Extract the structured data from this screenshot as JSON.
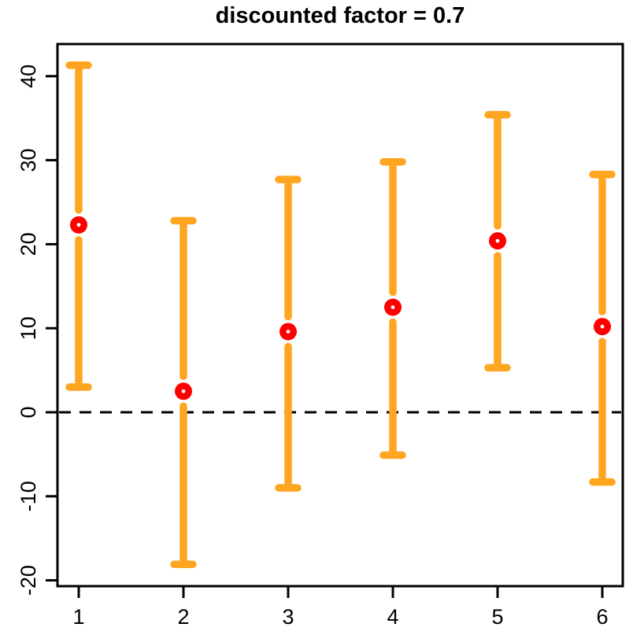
{
  "title": "discounted factor = 0.7",
  "chart_data": {
    "type": "scatter",
    "subtype": "point-estimates-with-error-bars",
    "title": "discounted factor = 0.7",
    "xlabel": "",
    "ylabel": "",
    "x": [
      1,
      2,
      3,
      4,
      5,
      6
    ],
    "series": [
      {
        "name": "point-estimate",
        "values": [
          22.3,
          2.5,
          9.6,
          12.5,
          20.4,
          10.2
        ],
        "color": "#fe0000",
        "marker": "filled-circle-white-center"
      },
      {
        "name": "interval-lower",
        "values": [
          3.0,
          -18.1,
          -9.0,
          -5.1,
          5.3,
          -8.3
        ],
        "color": "#ffa520"
      },
      {
        "name": "interval-upper",
        "values": [
          41.3,
          22.8,
          27.7,
          29.8,
          35.4,
          28.3
        ],
        "color": "#ffa520"
      }
    ],
    "error_bar_color": "#ffa520",
    "point_color": "#fe0000",
    "reference_line": {
      "y": 0,
      "style": "dashed",
      "color": "#000000"
    },
    "x_ticks": [
      "1",
      "2",
      "3",
      "4",
      "5",
      "6"
    ],
    "y_ticks": [
      "-20",
      "-10",
      "0",
      "10",
      "20",
      "30",
      "40"
    ],
    "y_tick_values": [
      -20,
      -10,
      0,
      10,
      20,
      30,
      40
    ],
    "xlim": [
      0.8,
      6.2
    ],
    "ylim": [
      -20.7,
      43.8
    ],
    "grid": false,
    "legend": false,
    "frame": "box",
    "axis_color": "#000000"
  }
}
